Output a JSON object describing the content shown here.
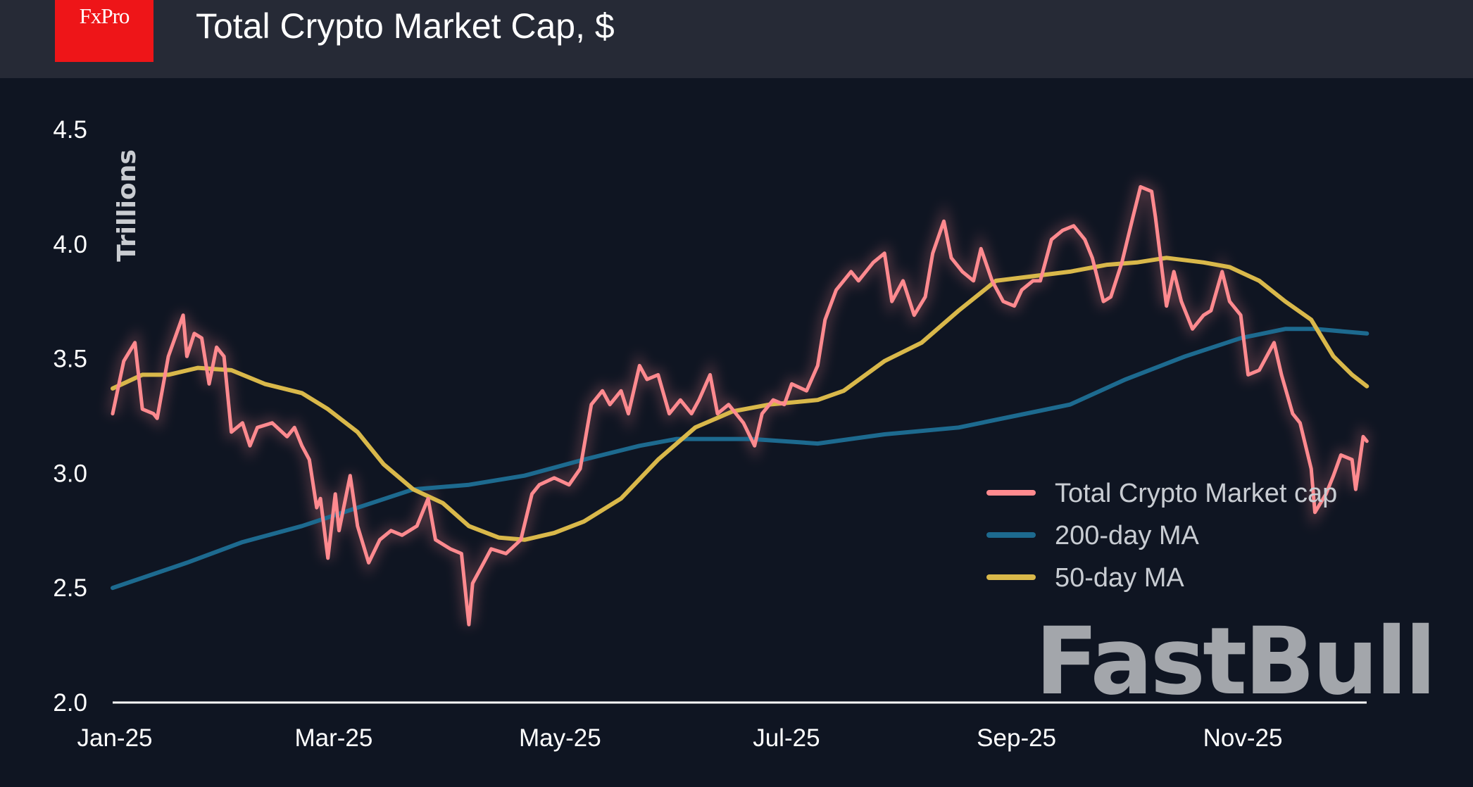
{
  "header": {
    "logo": "FxPro",
    "title": "Total Crypto Market Cap, $"
  },
  "watermark": "FastBull",
  "chart_data": {
    "type": "line",
    "title": "Total Crypto Market Cap, $",
    "ylabel": "Trillions",
    "xlabel": "",
    "ylim": [
      2.0,
      4.5
    ],
    "yticks": [
      "2.0",
      "2.5",
      "3.0",
      "3.5",
      "4.0",
      "4.5"
    ],
    "xlim": [
      "2025-01-01",
      "2025-12-05"
    ],
    "xticks": [
      {
        "date": "2025-01-01",
        "label": "Jan-25"
      },
      {
        "date": "2025-03-01",
        "label": "Mar-25"
      },
      {
        "date": "2025-05-01",
        "label": "May-25"
      },
      {
        "date": "2025-07-01",
        "label": "Jul-25"
      },
      {
        "date": "2025-09-01",
        "label": "Sep-25"
      },
      {
        "date": "2025-11-01",
        "label": "Nov-25"
      }
    ],
    "grid": false,
    "legend": "bottom-right",
    "series": [
      {
        "name": "Total Crypto Market cap",
        "color": "#ff8a8f",
        "points": [
          [
            "2025-01-01",
            3.26
          ],
          [
            "2025-01-04",
            3.49
          ],
          [
            "2025-01-07",
            3.57
          ],
          [
            "2025-01-09",
            3.28
          ],
          [
            "2025-01-12",
            3.26
          ],
          [
            "2025-01-13",
            3.24
          ],
          [
            "2025-01-16",
            3.51
          ],
          [
            "2025-01-20",
            3.69
          ],
          [
            "2025-01-21",
            3.51
          ],
          [
            "2025-01-23",
            3.61
          ],
          [
            "2025-01-25",
            3.59
          ],
          [
            "2025-01-27",
            3.39
          ],
          [
            "2025-01-29",
            3.55
          ],
          [
            "2025-01-31",
            3.51
          ],
          [
            "2025-02-02",
            3.18
          ],
          [
            "2025-02-05",
            3.22
          ],
          [
            "2025-02-07",
            3.12
          ],
          [
            "2025-02-09",
            3.2
          ],
          [
            "2025-02-13",
            3.22
          ],
          [
            "2025-02-17",
            3.16
          ],
          [
            "2025-02-19",
            3.2
          ],
          [
            "2025-02-21",
            3.12
          ],
          [
            "2025-02-23",
            3.06
          ],
          [
            "2025-02-25",
            2.85
          ],
          [
            "2025-02-26",
            2.89
          ],
          [
            "2025-02-28",
            2.63
          ],
          [
            "2025-03-02",
            2.91
          ],
          [
            "2025-03-03",
            2.75
          ],
          [
            "2025-03-06",
            2.99
          ],
          [
            "2025-03-08",
            2.77
          ],
          [
            "2025-03-11",
            2.61
          ],
          [
            "2025-03-14",
            2.71
          ],
          [
            "2025-03-17",
            2.75
          ],
          [
            "2025-03-20",
            2.73
          ],
          [
            "2025-03-24",
            2.77
          ],
          [
            "2025-03-27",
            2.89
          ],
          [
            "2025-03-29",
            2.71
          ],
          [
            "2025-04-02",
            2.67
          ],
          [
            "2025-04-05",
            2.65
          ],
          [
            "2025-04-07",
            2.34
          ],
          [
            "2025-04-08",
            2.52
          ],
          [
            "2025-04-11",
            2.61
          ],
          [
            "2025-04-13",
            2.67
          ],
          [
            "2025-04-17",
            2.65
          ],
          [
            "2025-04-21",
            2.71
          ],
          [
            "2025-04-24",
            2.91
          ],
          [
            "2025-04-26",
            2.95
          ],
          [
            "2025-04-30",
            2.98
          ],
          [
            "2025-05-04",
            2.95
          ],
          [
            "2025-05-07",
            3.02
          ],
          [
            "2025-05-10",
            3.3
          ],
          [
            "2025-05-13",
            3.36
          ],
          [
            "2025-05-15",
            3.3
          ],
          [
            "2025-05-18",
            3.36
          ],
          [
            "2025-05-20",
            3.26
          ],
          [
            "2025-05-23",
            3.47
          ],
          [
            "2025-05-25",
            3.41
          ],
          [
            "2025-05-28",
            3.43
          ],
          [
            "2025-05-31",
            3.26
          ],
          [
            "2025-06-03",
            3.32
          ],
          [
            "2025-06-06",
            3.26
          ],
          [
            "2025-06-08",
            3.32
          ],
          [
            "2025-06-11",
            3.43
          ],
          [
            "2025-06-13",
            3.26
          ],
          [
            "2025-06-16",
            3.3
          ],
          [
            "2025-06-20",
            3.22
          ],
          [
            "2025-06-23",
            3.12
          ],
          [
            "2025-06-25",
            3.26
          ],
          [
            "2025-06-28",
            3.32
          ],
          [
            "2025-07-01",
            3.3
          ],
          [
            "2025-07-03",
            3.39
          ],
          [
            "2025-07-07",
            3.36
          ],
          [
            "2025-07-10",
            3.47
          ],
          [
            "2025-07-12",
            3.67
          ],
          [
            "2025-07-15",
            3.8
          ],
          [
            "2025-07-19",
            3.88
          ],
          [
            "2025-07-21",
            3.84
          ],
          [
            "2025-07-25",
            3.92
          ],
          [
            "2025-07-28",
            3.96
          ],
          [
            "2025-07-30",
            3.75
          ],
          [
            "2025-08-02",
            3.84
          ],
          [
            "2025-08-05",
            3.69
          ],
          [
            "2025-08-08",
            3.77
          ],
          [
            "2025-08-10",
            3.96
          ],
          [
            "2025-08-13",
            4.1
          ],
          [
            "2025-08-15",
            3.94
          ],
          [
            "2025-08-18",
            3.88
          ],
          [
            "2025-08-21",
            3.84
          ],
          [
            "2025-08-23",
            3.98
          ],
          [
            "2025-08-26",
            3.84
          ],
          [
            "2025-08-29",
            3.75
          ],
          [
            "2025-09-01",
            3.73
          ],
          [
            "2025-09-03",
            3.8
          ],
          [
            "2025-09-06",
            3.84
          ],
          [
            "2025-09-08",
            3.84
          ],
          [
            "2025-09-11",
            4.02
          ],
          [
            "2025-09-14",
            4.06
          ],
          [
            "2025-09-17",
            4.08
          ],
          [
            "2025-09-20",
            4.02
          ],
          [
            "2025-09-22",
            3.94
          ],
          [
            "2025-09-25",
            3.75
          ],
          [
            "2025-09-27",
            3.77
          ],
          [
            "2025-09-30",
            3.92
          ],
          [
            "2025-10-03",
            4.12
          ],
          [
            "2025-10-05",
            4.25
          ],
          [
            "2025-10-08",
            4.23
          ],
          [
            "2025-10-09",
            4.12
          ],
          [
            "2025-10-12",
            3.73
          ],
          [
            "2025-10-14",
            3.88
          ],
          [
            "2025-10-16",
            3.75
          ],
          [
            "2025-10-19",
            3.63
          ],
          [
            "2025-10-22",
            3.69
          ],
          [
            "2025-10-24",
            3.71
          ],
          [
            "2025-10-27",
            3.88
          ],
          [
            "2025-10-29",
            3.75
          ],
          [
            "2025-11-01",
            3.69
          ],
          [
            "2025-11-03",
            3.43
          ],
          [
            "2025-11-06",
            3.45
          ],
          [
            "2025-11-10",
            3.57
          ],
          [
            "2025-11-12",
            3.43
          ],
          [
            "2025-11-15",
            3.26
          ],
          [
            "2025-11-17",
            3.22
          ],
          [
            "2025-11-20",
            3.02
          ],
          [
            "2025-11-21",
            2.83
          ],
          [
            "2025-11-24",
            2.91
          ],
          [
            "2025-11-26",
            2.99
          ],
          [
            "2025-11-28",
            3.08
          ],
          [
            "2025-12-01",
            3.06
          ],
          [
            "2025-12-02",
            2.93
          ],
          [
            "2025-12-04",
            3.16
          ],
          [
            "2025-12-05",
            3.14
          ]
        ]
      },
      {
        "name": "200-day MA",
        "color": "#1d6a8f",
        "points": [
          [
            "2025-01-01",
            2.5
          ],
          [
            "2025-01-21",
            2.61
          ],
          [
            "2025-02-05",
            2.7
          ],
          [
            "2025-02-21",
            2.77
          ],
          [
            "2025-03-08",
            2.85
          ],
          [
            "2025-03-23",
            2.93
          ],
          [
            "2025-04-07",
            2.95
          ],
          [
            "2025-04-22",
            2.99
          ],
          [
            "2025-05-08",
            3.06
          ],
          [
            "2025-05-23",
            3.12
          ],
          [
            "2025-06-02",
            3.15
          ],
          [
            "2025-06-22",
            3.15
          ],
          [
            "2025-07-10",
            3.13
          ],
          [
            "2025-07-28",
            3.17
          ],
          [
            "2025-08-17",
            3.2
          ],
          [
            "2025-09-01",
            3.25
          ],
          [
            "2025-09-16",
            3.3
          ],
          [
            "2025-10-01",
            3.41
          ],
          [
            "2025-10-17",
            3.51
          ],
          [
            "2025-11-01",
            3.59
          ],
          [
            "2025-11-13",
            3.63
          ],
          [
            "2025-11-21",
            3.63
          ],
          [
            "2025-12-05",
            3.61
          ]
        ]
      },
      {
        "name": "50-day MA",
        "color": "#d9b84a",
        "points": [
          [
            "2025-01-01",
            3.37
          ],
          [
            "2025-01-09",
            3.43
          ],
          [
            "2025-01-16",
            3.43
          ],
          [
            "2025-01-24",
            3.46
          ],
          [
            "2025-02-02",
            3.45
          ],
          [
            "2025-02-11",
            3.39
          ],
          [
            "2025-02-21",
            3.35
          ],
          [
            "2025-02-28",
            3.28
          ],
          [
            "2025-03-08",
            3.18
          ],
          [
            "2025-03-15",
            3.04
          ],
          [
            "2025-03-23",
            2.93
          ],
          [
            "2025-03-31",
            2.87
          ],
          [
            "2025-04-07",
            2.77
          ],
          [
            "2025-04-15",
            2.72
          ],
          [
            "2025-04-22",
            2.71
          ],
          [
            "2025-04-30",
            2.74
          ],
          [
            "2025-05-08",
            2.79
          ],
          [
            "2025-05-18",
            2.89
          ],
          [
            "2025-05-28",
            3.06
          ],
          [
            "2025-06-07",
            3.2
          ],
          [
            "2025-06-17",
            3.27
          ],
          [
            "2025-06-27",
            3.3
          ],
          [
            "2025-07-10",
            3.32
          ],
          [
            "2025-07-17",
            3.36
          ],
          [
            "2025-07-28",
            3.49
          ],
          [
            "2025-08-07",
            3.57
          ],
          [
            "2025-08-17",
            3.71
          ],
          [
            "2025-08-27",
            3.84
          ],
          [
            "2025-09-06",
            3.86
          ],
          [
            "2025-09-16",
            3.88
          ],
          [
            "2025-09-26",
            3.91
          ],
          [
            "2025-10-04",
            3.92
          ],
          [
            "2025-10-12",
            3.94
          ],
          [
            "2025-10-22",
            3.92
          ],
          [
            "2025-10-29",
            3.9
          ],
          [
            "2025-11-06",
            3.84
          ],
          [
            "2025-11-13",
            3.75
          ],
          [
            "2025-11-20",
            3.67
          ],
          [
            "2025-11-26",
            3.51
          ],
          [
            "2025-12-01",
            3.43
          ],
          [
            "2025-12-05",
            3.38
          ]
        ]
      }
    ]
  }
}
